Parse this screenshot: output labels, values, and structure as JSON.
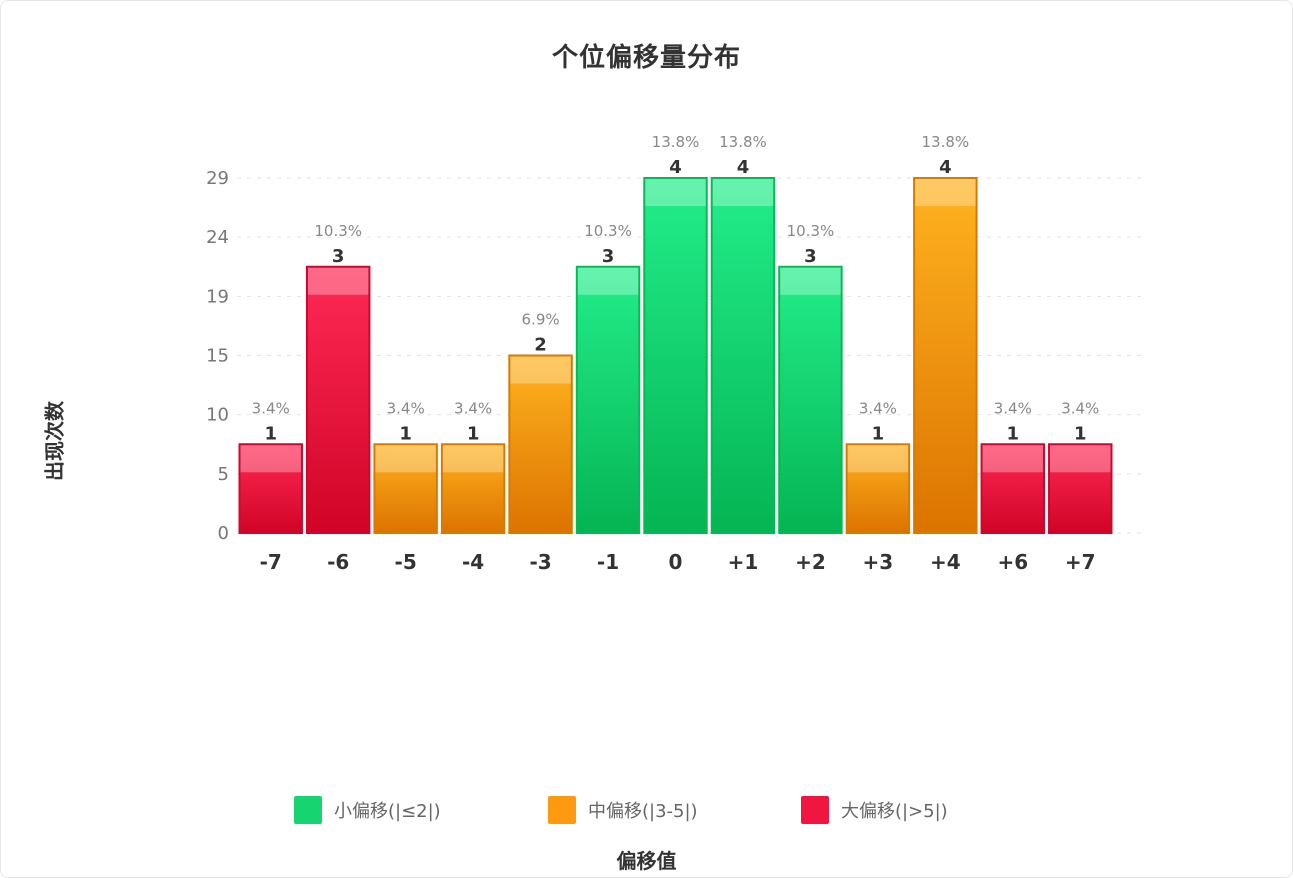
{
  "title": "个位偏移量分布",
  "chart_data": {
    "type": "bar",
    "title": "个位偏移量分布",
    "xlabel": "偏移值",
    "ylabel": "出现次数",
    "categories": [
      "-7",
      "-6",
      "-5",
      "-4",
      "-3",
      "-1",
      "0",
      "+1",
      "+2",
      "+3",
      "+4",
      "+6",
      "+7"
    ],
    "values": [
      1,
      3,
      1,
      1,
      2,
      3,
      4,
      4,
      3,
      1,
      4,
      1,
      1
    ],
    "percent_labels": [
      "3.4%",
      "10.3%",
      "3.4%",
      "3.4%",
      "6.9%",
      "10.3%",
      "13.8%",
      "13.8%",
      "10.3%",
      "3.4%",
      "13.8%",
      "3.4%",
      "3.4%"
    ],
    "bar_groups": [
      "large",
      "large",
      "medium",
      "medium",
      "medium",
      "small",
      "small",
      "small",
      "small",
      "medium",
      "medium",
      "large",
      "large"
    ],
    "y_ticks": [
      0,
      5,
      10,
      15,
      19,
      24,
      29
    ],
    "ylim": [
      0,
      29
    ],
    "grid": true,
    "legend_position": "bottom",
    "legend": [
      {
        "key": "small",
        "label": "小偏移(|≤2|)",
        "color": "#16d46f"
      },
      {
        "key": "medium",
        "label": "中偏移(|3-5|)",
        "color": "#ff9a10"
      },
      {
        "key": "large",
        "label": "大偏移(|>5|)",
        "color": "#f0163f"
      }
    ]
  }
}
